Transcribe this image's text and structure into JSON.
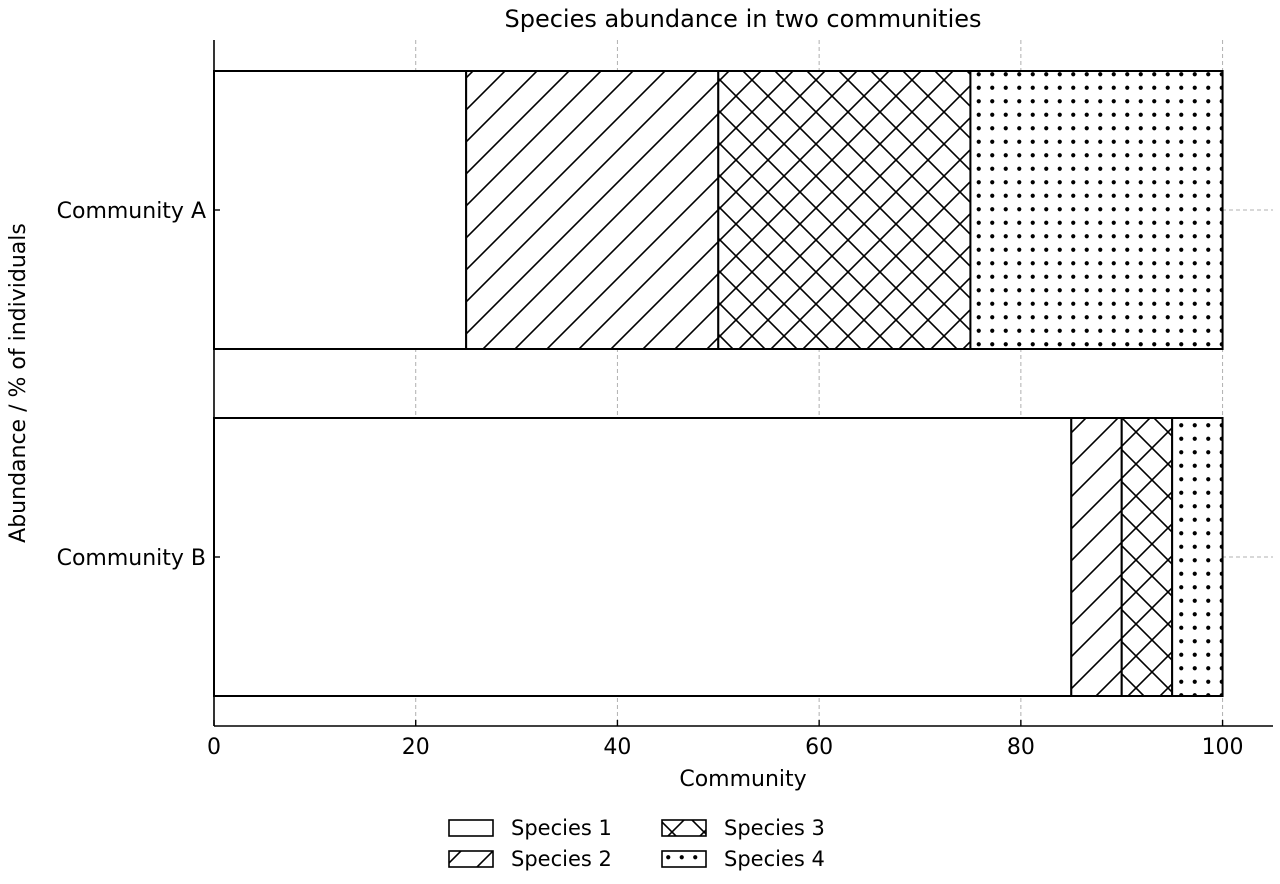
{
  "chart_data": {
    "type": "bar",
    "orientation": "horizontal",
    "stacked": true,
    "title": "Species abundance in two communities",
    "xlabel": "Community",
    "ylabel": "Abundance / % of individuals",
    "categories": [
      "Community A",
      "Community B"
    ],
    "series": [
      {
        "name": "Species 1",
        "values": [
          25,
          85
        ],
        "pattern": "none"
      },
      {
        "name": "Species 2",
        "values": [
          25,
          5
        ],
        "pattern": "diagonal"
      },
      {
        "name": "Species 3",
        "values": [
          25,
          5
        ],
        "pattern": "crosshatch"
      },
      {
        "name": "Species 4",
        "values": [
          25,
          5
        ],
        "pattern": "dots"
      }
    ],
    "xlim": [
      0,
      105
    ],
    "xticks": [
      0,
      20,
      40,
      60,
      80,
      100
    ],
    "xtick_labels": [
      "0",
      "20",
      "40",
      "60",
      "80",
      "100"
    ],
    "grid": true,
    "legend_position": "bottom-center",
    "colors": {
      "fill": "#ffffff",
      "edge": "#000000",
      "grid": "#b0b0b0"
    }
  }
}
